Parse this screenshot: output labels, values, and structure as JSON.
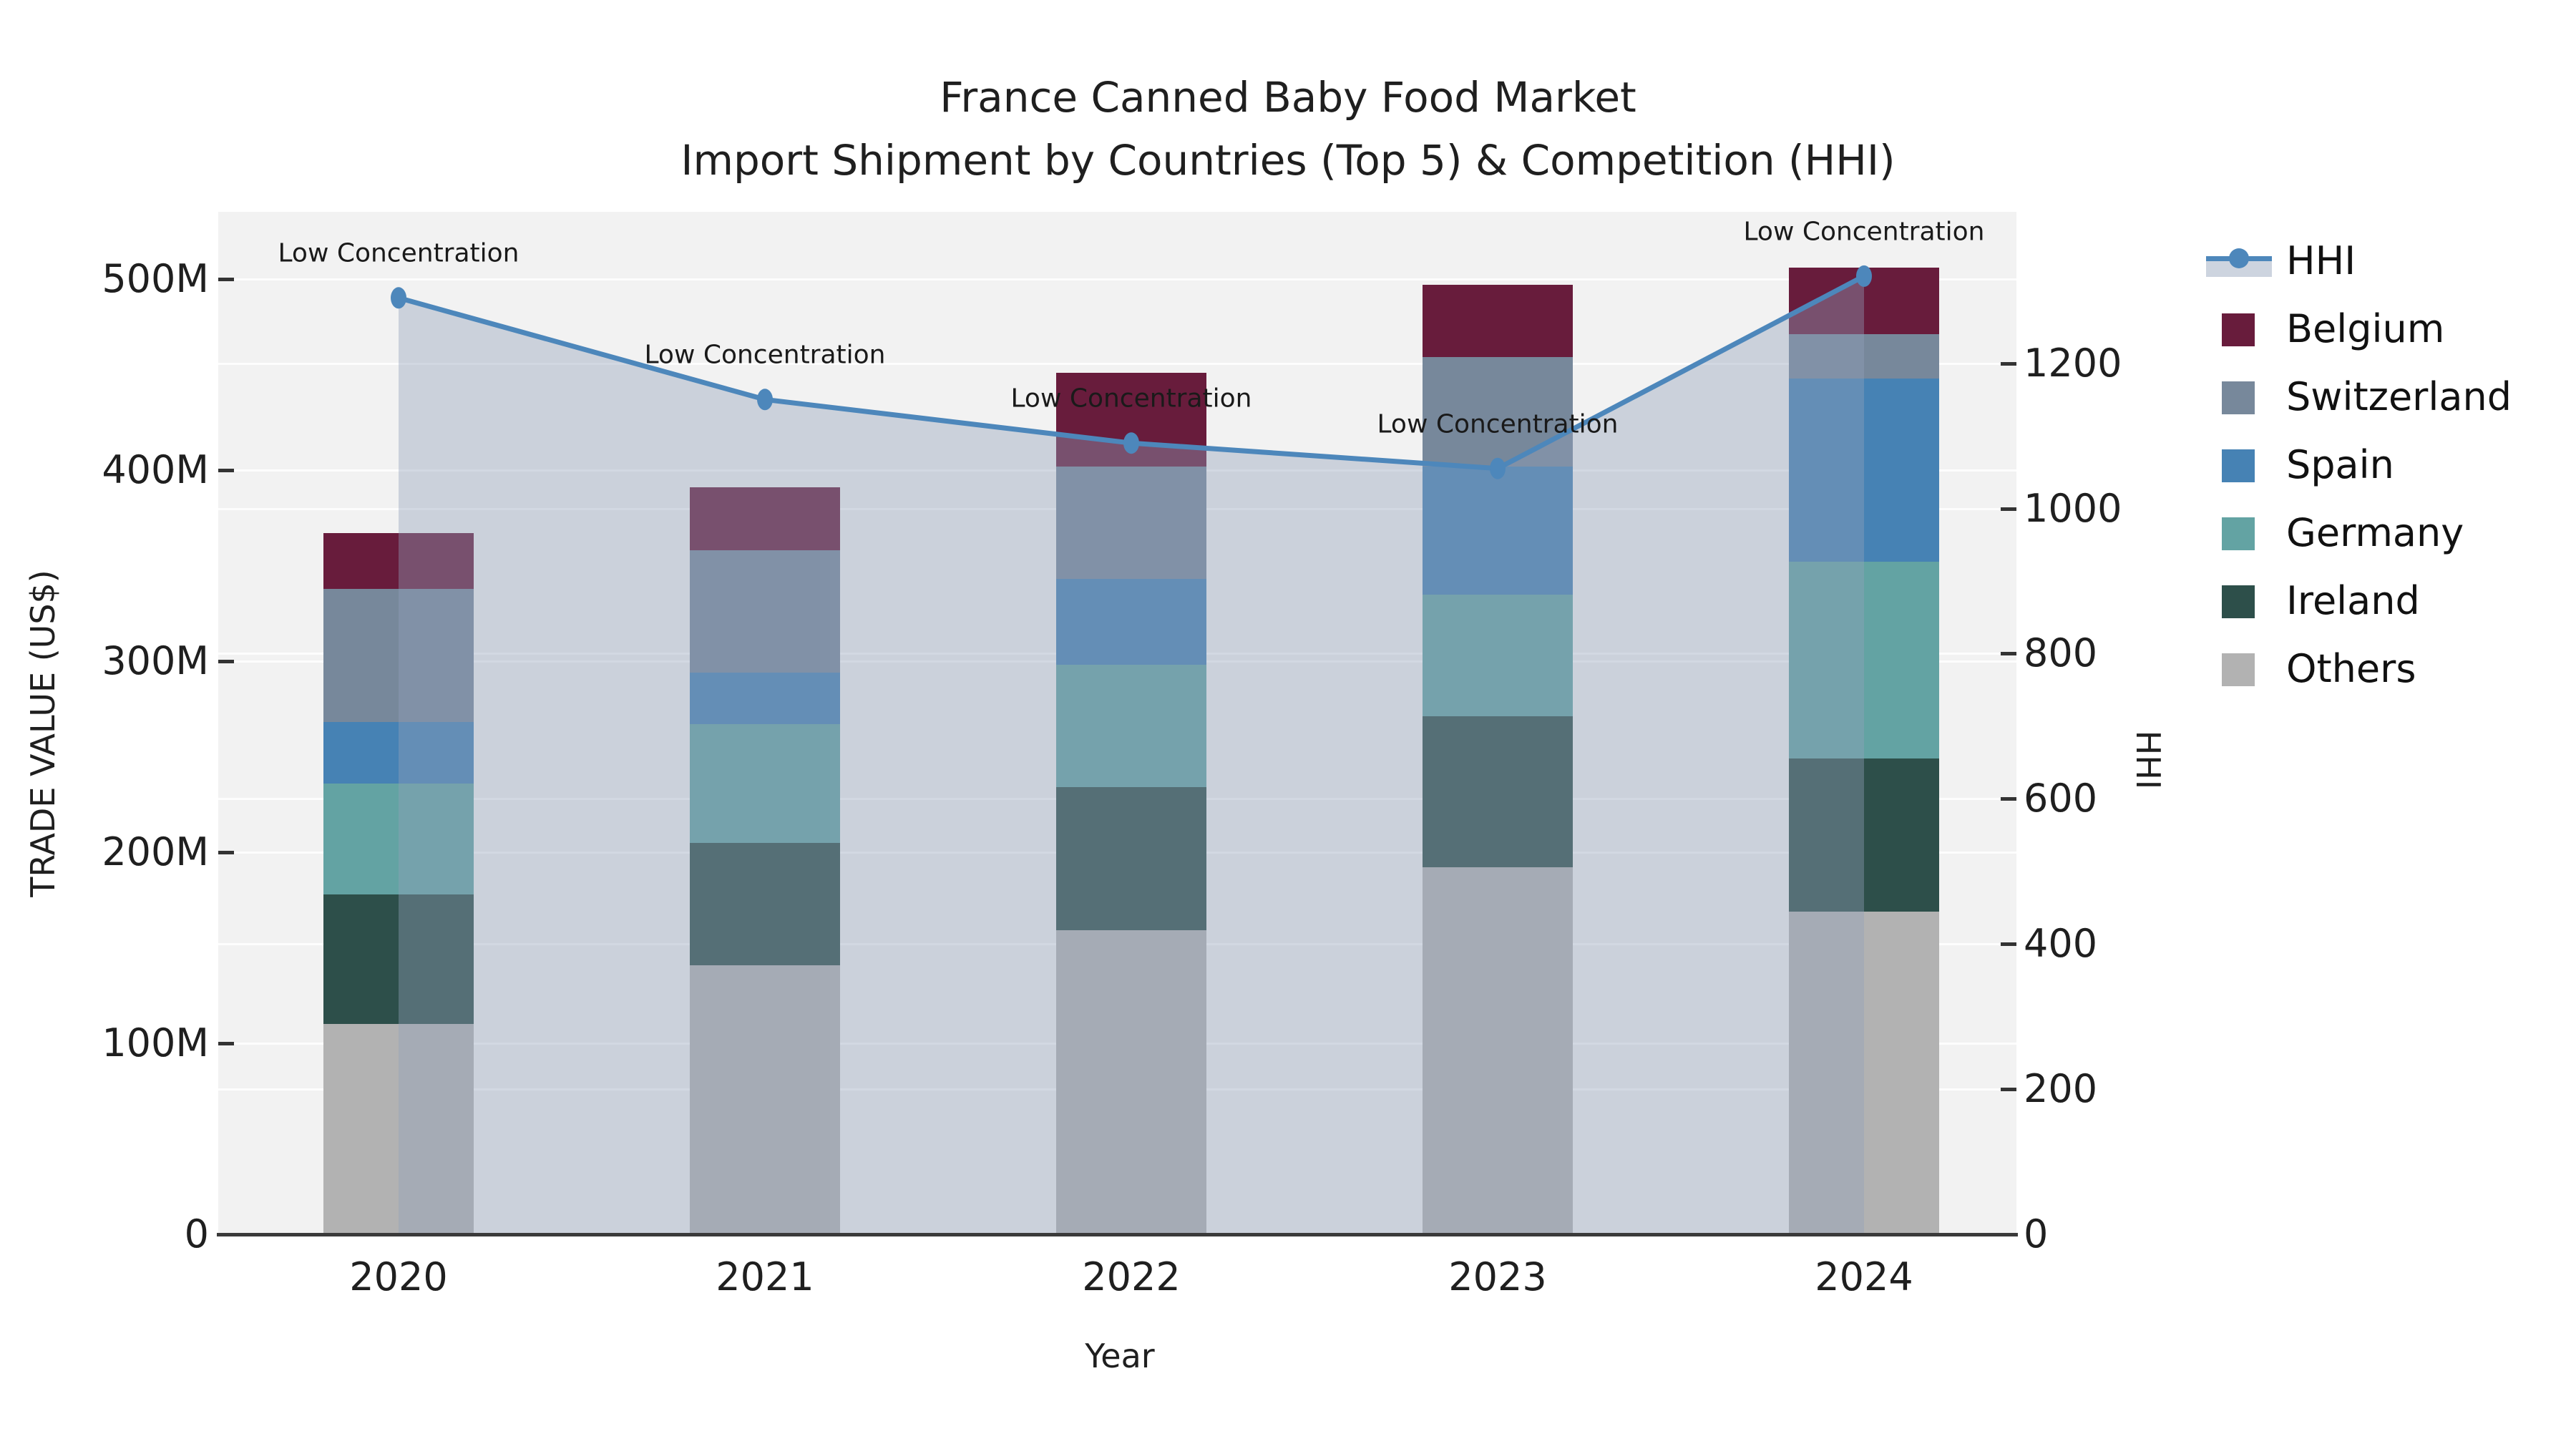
{
  "title": {
    "line1": "France Canned Baby Food Market",
    "line2": "Import Shipment by Countries (Top 5) & Competition (HHI)"
  },
  "chart_data": {
    "type": "bar",
    "subtype": "stacked-bar-with-line",
    "categories": [
      "2020",
      "2021",
      "2022",
      "2023",
      "2024"
    ],
    "series": [
      {
        "name": "Others",
        "color": "#b2b2b2",
        "values": [
          110,
          141,
          159,
          192,
          169
        ]
      },
      {
        "name": "Ireland",
        "color": "#2d4f4a",
        "values": [
          68,
          64,
          75,
          79,
          80
        ]
      },
      {
        "name": "Germany",
        "color": "#63a3a3",
        "values": [
          58,
          62,
          64,
          64,
          103
        ]
      },
      {
        "name": "Spain",
        "color": "#4682b4",
        "values": [
          32,
          27,
          45,
          67,
          96
        ]
      },
      {
        "name": "Switzerland",
        "color": "#77889b",
        "values": [
          70,
          64,
          59,
          57,
          23
        ]
      },
      {
        "name": "Belgium",
        "color": "#681c3c",
        "values": [
          29,
          33,
          49,
          38,
          35
        ]
      }
    ],
    "bar_totals_millions": [
      367,
      391,
      451,
      497,
      506
    ],
    "line_series": {
      "name": "HHI",
      "color": "#4d87bb",
      "area_fill": "rgba(144,160,184,0.40)",
      "values": [
        1290,
        1150,
        1090,
        1055,
        1320
      ]
    },
    "annotations": [
      {
        "text": "Low Concentration",
        "x": "2020"
      },
      {
        "text": "Low Concentration",
        "x": "2021"
      },
      {
        "text": "Low Concentration",
        "x": "2022"
      },
      {
        "text": "Low Concentration",
        "x": "2023"
      },
      {
        "text": "Low Concentration",
        "x": "2024"
      }
    ],
    "y_left": {
      "label": "TRADE VALUE (US$)",
      "ticks": [
        "0",
        "100M",
        "200M",
        "300M",
        "400M",
        "500M"
      ],
      "tick_values": [
        0,
        100,
        200,
        300,
        400,
        500
      ],
      "range_millions": [
        0,
        535
      ]
    },
    "y_right": {
      "label": "HHI",
      "ticks": [
        "0",
        "200",
        "400",
        "600",
        "800",
        "1000",
        "1200"
      ],
      "tick_values": [
        0,
        200,
        400,
        600,
        800,
        1000,
        1200
      ],
      "range": [
        0,
        1405
      ]
    },
    "x": {
      "label": "Year"
    },
    "legend": {
      "entries": [
        "HHI",
        "Belgium",
        "Switzerland",
        "Spain",
        "Germany",
        "Ireland",
        "Others"
      ],
      "position": "right"
    },
    "grid": true,
    "plot_background": "#f2f2f2"
  }
}
